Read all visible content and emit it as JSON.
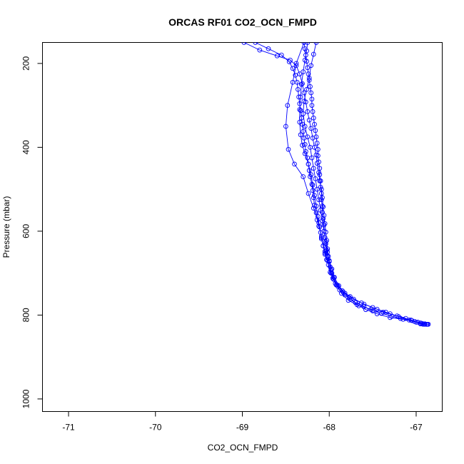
{
  "chart_data": {
    "type": "line",
    "title": "ORCAS RF01 CO2_OCN_FMPD",
    "xlabel": "CO2_OCN_FMPD",
    "ylabel": "Pressure (mbar)",
    "xlim": [
      -71.3,
      -66.7
    ],
    "ylim": [
      1030,
      150
    ],
    "y_inverted": true,
    "x_ticks": [
      -71,
      -70,
      -69,
      -68,
      -67
    ],
    "y_ticks": [
      200,
      400,
      600,
      800,
      1000
    ],
    "grid": false,
    "marker": "open-circle",
    "series_color": "#0000ff",
    "series": [
      {
        "points": [
          [
            -66.86,
            822
          ],
          [
            -66.88,
            822
          ],
          [
            -66.9,
            822
          ],
          [
            -66.92,
            822
          ],
          [
            -66.95,
            821
          ],
          [
            -67.0,
            817
          ],
          [
            -67.08,
            812
          ],
          [
            -67.18,
            808
          ],
          [
            -67.28,
            803
          ],
          [
            -67.4,
            796
          ],
          [
            -67.5,
            790
          ],
          [
            -67.6,
            780
          ],
          [
            -67.7,
            770
          ],
          [
            -67.77,
            758
          ],
          [
            -67.84,
            745
          ],
          [
            -67.9,
            732
          ],
          [
            -67.95,
            715
          ],
          [
            -67.97,
            700
          ],
          [
            -67.99,
            685
          ],
          [
            -68.0,
            672
          ],
          [
            -68.02,
            660
          ],
          [
            -68.03,
            645
          ],
          [
            -68.04,
            630
          ],
          [
            -68.05,
            615
          ],
          [
            -68.06,
            600
          ],
          [
            -68.06,
            585
          ],
          [
            -68.07,
            570
          ],
          [
            -68.08,
            555
          ],
          [
            -68.08,
            540
          ],
          [
            -68.09,
            525
          ],
          [
            -68.09,
            510
          ],
          [
            -68.1,
            495
          ],
          [
            -68.1,
            480
          ],
          [
            -68.11,
            465
          ],
          [
            -68.11,
            450
          ],
          [
            -68.12,
            435
          ],
          [
            -68.13,
            420
          ],
          [
            -68.13,
            405
          ],
          [
            -68.14,
            390
          ],
          [
            -68.15,
            375
          ],
          [
            -68.16,
            360
          ],
          [
            -68.17,
            345
          ],
          [
            -68.18,
            330
          ],
          [
            -68.19,
            315
          ],
          [
            -68.2,
            300
          ],
          [
            -68.2,
            285
          ],
          [
            -68.21,
            270
          ],
          [
            -68.22,
            255
          ],
          [
            -68.23,
            240
          ],
          [
            -68.24,
            225
          ],
          [
            -68.25,
            210
          ],
          [
            -68.26,
            195
          ],
          [
            -68.27,
            180
          ],
          [
            -68.28,
            165
          ],
          [
            -68.29,
            150
          ],
          [
            -68.38,
            200
          ],
          [
            -68.42,
            245
          ],
          [
            -68.48,
            300
          ],
          [
            -68.5,
            350
          ],
          [
            -68.47,
            405
          ],
          [
            -68.4,
            440
          ],
          [
            -68.3,
            470
          ],
          [
            -68.24,
            510
          ],
          [
            -68.18,
            545
          ],
          [
            -68.12,
            580
          ],
          [
            -68.09,
            615
          ],
          [
            -68.05,
            648
          ],
          [
            -68.02,
            670
          ],
          [
            -67.98,
            700
          ],
          [
            -67.92,
            728
          ],
          [
            -67.86,
            748
          ],
          [
            -67.78,
            765
          ],
          [
            -67.66,
            778
          ],
          [
            -67.52,
            786
          ],
          [
            -67.38,
            793
          ],
          [
            -67.22,
            802
          ],
          [
            -67.06,
            812
          ],
          [
            -66.95,
            819
          ],
          [
            -66.87,
            822
          ]
        ]
      },
      {
        "points": [
          [
            -66.9,
            821
          ],
          [
            -67.02,
            815
          ],
          [
            -67.15,
            810
          ],
          [
            -67.3,
            806
          ],
          [
            -67.45,
            797
          ],
          [
            -67.58,
            787
          ],
          [
            -67.68,
            775
          ],
          [
            -67.75,
            762
          ],
          [
            -67.82,
            752
          ],
          [
            -67.88,
            740
          ],
          [
            -67.93,
            725
          ],
          [
            -67.96,
            712
          ],
          [
            -67.99,
            698
          ],
          [
            -68.01,
            680
          ],
          [
            -68.03,
            668
          ],
          [
            -68.05,
            652
          ],
          [
            -68.07,
            635
          ],
          [
            -68.09,
            618
          ],
          [
            -68.1,
            603
          ],
          [
            -68.12,
            588
          ],
          [
            -68.14,
            573
          ],
          [
            -68.15,
            556
          ],
          [
            -68.17,
            538
          ],
          [
            -68.18,
            520
          ],
          [
            -68.19,
            503
          ],
          [
            -68.2,
            488
          ],
          [
            -68.22,
            470
          ],
          [
            -68.23,
            455
          ],
          [
            -68.24,
            440
          ],
          [
            -68.25,
            425
          ],
          [
            -68.27,
            410
          ],
          [
            -68.28,
            393
          ],
          [
            -68.29,
            378
          ],
          [
            -68.3,
            362
          ],
          [
            -68.31,
            345
          ],
          [
            -68.32,
            330
          ],
          [
            -68.33,
            312
          ],
          [
            -68.34,
            296
          ],
          [
            -68.35,
            280
          ],
          [
            -68.36,
            262
          ],
          [
            -68.37,
            245
          ],
          [
            -68.39,
            228
          ],
          [
            -68.42,
            212
          ],
          [
            -68.46,
            196
          ],
          [
            -68.55,
            180
          ],
          [
            -68.7,
            165
          ],
          [
            -68.85,
            150
          ]
        ]
      },
      {
        "points": [
          [
            -68.98,
            150
          ],
          [
            -68.8,
            168
          ],
          [
            -68.6,
            182
          ],
          [
            -68.45,
            192
          ],
          [
            -68.38,
            205
          ],
          [
            -68.34,
            225
          ],
          [
            -68.31,
            248
          ],
          [
            -68.29,
            270
          ],
          [
            -68.27,
            292
          ],
          [
            -68.25,
            315
          ],
          [
            -68.23,
            335
          ],
          [
            -68.21,
            355
          ],
          [
            -68.19,
            378
          ],
          [
            -68.17,
            400
          ],
          [
            -68.15,
            418
          ],
          [
            -68.14,
            438
          ],
          [
            -68.12,
            460
          ],
          [
            -68.11,
            480
          ],
          [
            -68.09,
            500
          ],
          [
            -68.08,
            520
          ],
          [
            -68.07,
            542
          ],
          [
            -68.06,
            562
          ],
          [
            -68.05,
            582
          ],
          [
            -68.04,
            602
          ],
          [
            -68.03,
            622
          ],
          [
            -68.02,
            642
          ],
          [
            -68.01,
            660
          ],
          [
            -68.0,
            672
          ],
          [
            -67.98,
            692
          ],
          [
            -67.95,
            710
          ],
          [
            -67.91,
            728
          ],
          [
            -67.85,
            742
          ],
          [
            -67.76,
            756
          ],
          [
            -67.63,
            771
          ],
          [
            -67.5,
            782
          ],
          [
            -67.35,
            793
          ],
          [
            -67.2,
            804
          ],
          [
            -67.05,
            813
          ],
          [
            -66.93,
            820
          ],
          [
            -66.88,
            822
          ]
        ]
      },
      {
        "points": [
          [
            -68.25,
            150
          ],
          [
            -68.26,
            170
          ],
          [
            -68.28,
            192
          ],
          [
            -68.3,
            220
          ],
          [
            -68.32,
            250
          ],
          [
            -68.33,
            280
          ],
          [
            -68.34,
            310
          ],
          [
            -68.34,
            340
          ],
          [
            -68.33,
            370
          ],
          [
            -68.31,
            395
          ],
          [
            -68.28,
            415
          ],
          [
            -68.24,
            440
          ],
          [
            -68.21,
            465
          ],
          [
            -68.19,
            490
          ],
          [
            -68.17,
            515
          ],
          [
            -68.15,
            540
          ],
          [
            -68.13,
            565
          ],
          [
            -68.11,
            590
          ],
          [
            -68.09,
            612
          ],
          [
            -68.07,
            635
          ],
          [
            -68.05,
            655
          ],
          [
            -68.03,
            668
          ],
          [
            -68.0,
            672
          ]
        ]
      },
      {
        "points": [
          [
            -68.15,
            150
          ],
          [
            -68.18,
            178
          ],
          [
            -68.21,
            205
          ],
          [
            -68.23,
            235
          ],
          [
            -68.26,
            262
          ],
          [
            -68.29,
            290
          ],
          [
            -68.3,
            320
          ],
          [
            -68.28,
            350
          ],
          [
            -68.25,
            375
          ],
          [
            -68.22,
            400
          ],
          [
            -68.2,
            425
          ],
          [
            -68.18,
            450
          ],
          [
            -68.16,
            475
          ],
          [
            -68.14,
            500
          ],
          [
            -68.12,
            525
          ],
          [
            -68.1,
            550
          ],
          [
            -68.08,
            575
          ],
          [
            -68.06,
            600
          ],
          [
            -68.04,
            625
          ],
          [
            -68.02,
            650
          ],
          [
            -68.0,
            670
          ],
          [
            -67.97,
            690
          ],
          [
            -67.94,
            710
          ],
          [
            -67.89,
            730
          ],
          [
            -67.82,
            748
          ],
          [
            -67.72,
            762
          ],
          [
            -67.6,
            774
          ],
          [
            -67.45,
            786
          ],
          [
            -67.3,
            797
          ],
          [
            -67.12,
            808
          ],
          [
            -66.98,
            817
          ],
          [
            -66.9,
            821
          ]
        ]
      }
    ]
  }
}
